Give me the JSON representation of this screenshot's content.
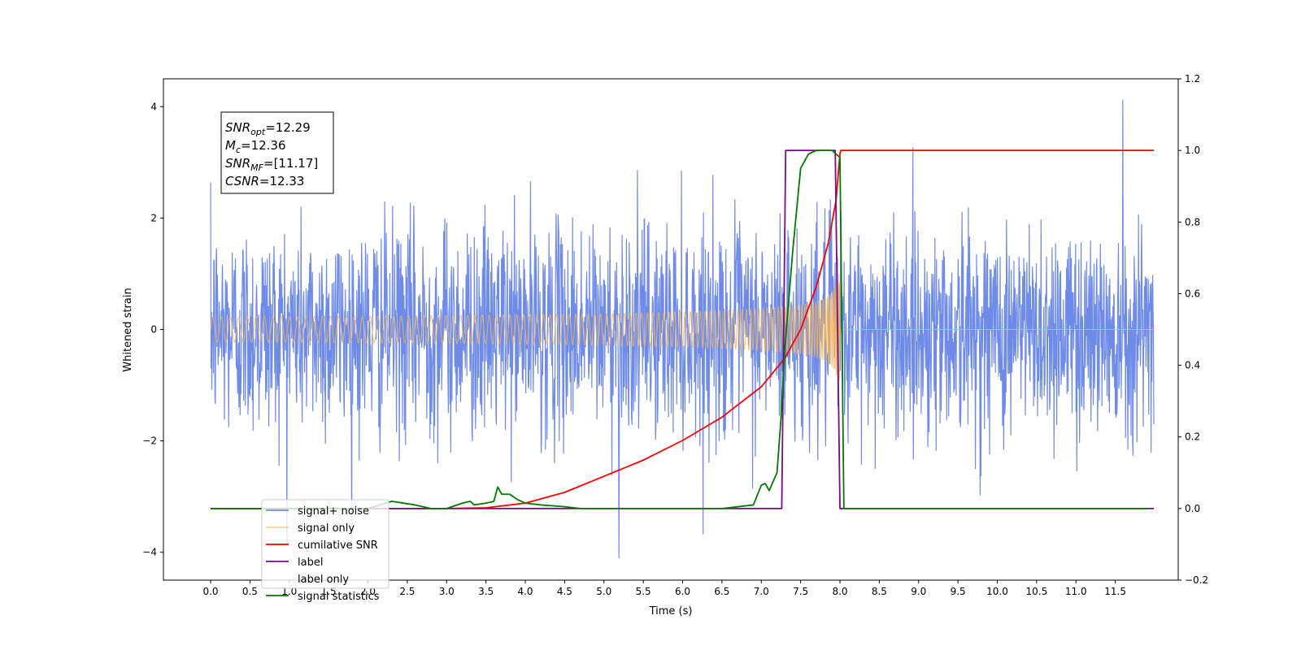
{
  "chart_data": {
    "type": "line",
    "xlabel": "Time (s)",
    "ylabel": "Whitened strain",
    "xlim": [
      -0.6,
      12.3
    ],
    "ylim": [
      -4.5,
      4.5
    ],
    "y2lim": [
      -0.2,
      1.2
    ],
    "x_ticks": [
      "0.0",
      "0.5",
      "1.0",
      "1.5",
      "2.0",
      "2.5",
      "3.0",
      "3.5",
      "4.0",
      "4.5",
      "5.0",
      "5.5",
      "6.0",
      "6.5",
      "7.0",
      "7.5",
      "8.0",
      "8.5",
      "9.0",
      "9.5",
      "10.0",
      "10.5",
      "11.0",
      "11.5"
    ],
    "y_ticks": [
      "−4",
      "−2",
      "0",
      "2",
      "4"
    ],
    "y2_ticks": [
      "−0.2",
      "0.0",
      "0.2",
      "0.4",
      "0.6",
      "0.8",
      "1.0",
      "1.2"
    ],
    "legend_placement": "lower-left",
    "grid": false,
    "annotation": [
      {
        "name": "SNR",
        "sub": "opt",
        "value": "=12.29"
      },
      {
        "name": "M",
        "sub": "c",
        "value": "=12.36"
      },
      {
        "name": "SNR",
        "sub": "MF",
        "value": "=[11.17]"
      },
      {
        "name": "CSNR",
        "sub": "",
        "value": "=12.33"
      }
    ],
    "series": [
      {
        "name": "signal+ noise",
        "axis": "left",
        "color": "#6f8be8",
        "style": "noise",
        "x_range": [
          0.0,
          11.99
        ],
        "noise_sigma": 0.95,
        "y_extremes": [
          4.12,
          -4.1
        ]
      },
      {
        "name": "signal only",
        "axis": "left",
        "color": "#f5b55a",
        "style": "chirp",
        "x_range": [
          0.0,
          11.99
        ],
        "merger_time": 8.0,
        "peak_amplitude": 1.0
      },
      {
        "name": "cumilative SNR",
        "axis": "right",
        "color": "#ff0000",
        "x": [
          0.0,
          3.0,
          3.5,
          4.0,
          4.5,
          5.0,
          5.5,
          6.0,
          6.5,
          7.0,
          7.3,
          7.5,
          7.7,
          7.85,
          7.95,
          8.0,
          8.01,
          11.99
        ],
        "y": [
          0.0,
          0.0,
          0.002,
          0.015,
          0.045,
          0.09,
          0.135,
          0.19,
          0.255,
          0.34,
          0.42,
          0.5,
          0.62,
          0.74,
          0.86,
          0.99,
          1.0,
          1.0
        ]
      },
      {
        "name": "label",
        "axis": "right",
        "color": "#7b0a8a",
        "x": [
          0.0,
          7.26,
          7.31,
          7.94,
          8.0,
          11.99
        ],
        "y": [
          0.0,
          0.0,
          1.0,
          1.0,
          0.0,
          0.0
        ]
      },
      {
        "name": "label only",
        "axis": "right",
        "color": "#7b0a8a",
        "hidden_behind": true,
        "x": [],
        "y": []
      },
      {
        "name": "signal statistics",
        "axis": "right",
        "color": "#007a00",
        "x": [
          0.0,
          2.0,
          2.3,
          2.6,
          2.8,
          3.0,
          3.2,
          3.3,
          3.35,
          3.5,
          3.6,
          3.65,
          3.7,
          3.8,
          3.9,
          4.0,
          4.2,
          4.5,
          4.7,
          6.5,
          6.9,
          7.0,
          7.05,
          7.1,
          7.2,
          7.25,
          7.3,
          7.4,
          7.5,
          7.6,
          7.7,
          7.8,
          7.9,
          8.0,
          8.05,
          11.92
        ],
        "y": [
          0.0,
          0.0,
          0.02,
          0.01,
          0.0,
          0.0,
          0.015,
          0.02,
          0.01,
          0.015,
          0.02,
          0.06,
          0.04,
          0.04,
          0.025,
          0.015,
          0.01,
          0.005,
          0.0,
          0.0,
          0.01,
          0.065,
          0.07,
          0.05,
          0.1,
          0.25,
          0.45,
          0.72,
          0.95,
          0.99,
          1.0,
          1.0,
          1.0,
          0.98,
          0.0,
          0.0
        ]
      }
    ]
  }
}
